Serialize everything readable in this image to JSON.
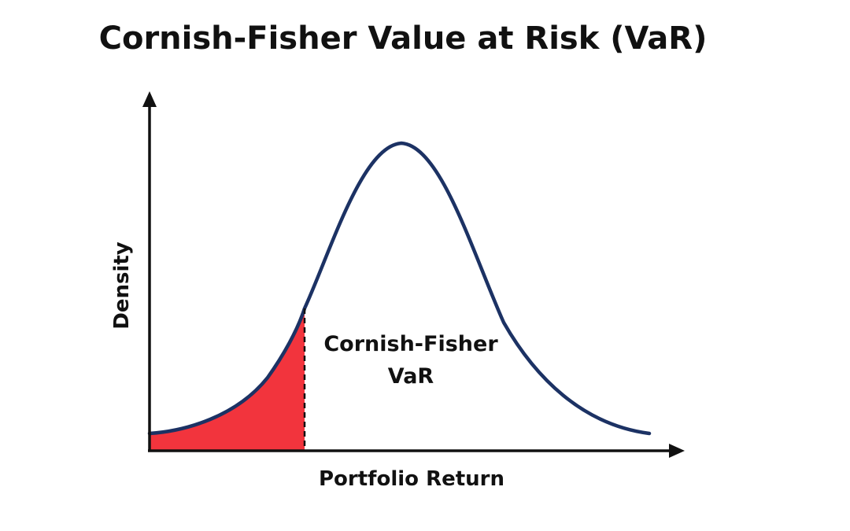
{
  "title": "Cornish-Fisher Value at Risk (VaR)",
  "ylabel": "Density",
  "xlabel": "Portfolio Return",
  "annotation": {
    "line1": "Cornish-Fisher",
    "line2": "VaR"
  },
  "colors": {
    "curve": "#1c3264",
    "tail_fill": "#f2343d",
    "axis": "#111111",
    "text": "#111111",
    "cutoff_line": "#111111"
  }
}
